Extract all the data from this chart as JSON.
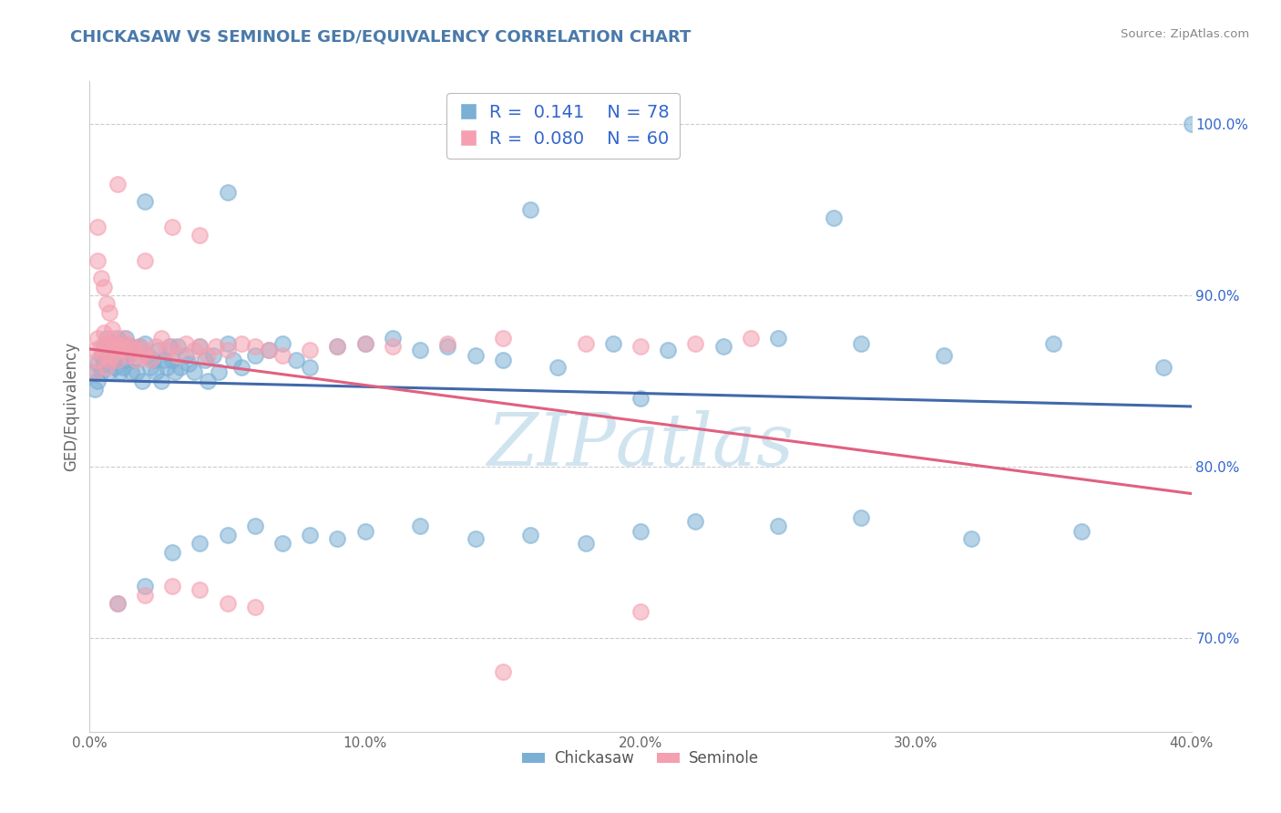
{
  "title": "CHICKASAW VS SEMINOLE GED/EQUIVALENCY CORRELATION CHART",
  "source_text": "Source: ZipAtlas.com",
  "ylabel": "GED/Equivalency",
  "xlim": [
    0.0,
    0.4
  ],
  "ylim": [
    0.645,
    1.025
  ],
  "xtick_labels": [
    "0.0%",
    "10.0%",
    "20.0%",
    "30.0%",
    "40.0%"
  ],
  "xtick_values": [
    0.0,
    0.1,
    0.2,
    0.3,
    0.4
  ],
  "ytick_labels_right": [
    "70.0%",
    "80.0%",
    "90.0%",
    "100.0%"
  ],
  "ytick_values_right": [
    0.7,
    0.8,
    0.9,
    1.0
  ],
  "chickasaw_R": 0.141,
  "chickasaw_N": 78,
  "seminole_R": 0.08,
  "seminole_N": 60,
  "blue_color": "#7BAFD4",
  "pink_color": "#F4A0B0",
  "blue_line_color": "#4169AA",
  "pink_line_color": "#E06080",
  "title_color": "#4A7AAA",
  "legend_N_color": "#3366CC",
  "watermark_color": "#D0E4F0",
  "background_color": "#FFFFFF",
  "grid_color": "#CCCCCC",
  "chickasaw_x": [
    0.002,
    0.002,
    0.003,
    0.003,
    0.004,
    0.004,
    0.005,
    0.005,
    0.006,
    0.006,
    0.007,
    0.007,
    0.008,
    0.009,
    0.009,
    0.01,
    0.01,
    0.011,
    0.011,
    0.012,
    0.012,
    0.013,
    0.013,
    0.014,
    0.015,
    0.015,
    0.016,
    0.017,
    0.018,
    0.019,
    0.02,
    0.021,
    0.022,
    0.023,
    0.024,
    0.025,
    0.026,
    0.027,
    0.028,
    0.029,
    0.03,
    0.031,
    0.032,
    0.033,
    0.035,
    0.036,
    0.038,
    0.04,
    0.042,
    0.043,
    0.045,
    0.047,
    0.05,
    0.052,
    0.055,
    0.06,
    0.065,
    0.07,
    0.075,
    0.08,
    0.09,
    0.1,
    0.11,
    0.12,
    0.13,
    0.14,
    0.15,
    0.17,
    0.19,
    0.21,
    0.23,
    0.25,
    0.28,
    0.31,
    0.35,
    0.39,
    0.2,
    0.4
  ],
  "chickasaw_y": [
    0.855,
    0.845,
    0.86,
    0.85,
    0.865,
    0.855,
    0.87,
    0.86,
    0.875,
    0.865,
    0.868,
    0.855,
    0.862,
    0.872,
    0.858,
    0.875,
    0.862,
    0.868,
    0.855,
    0.872,
    0.858,
    0.875,
    0.862,
    0.865,
    0.87,
    0.855,
    0.862,
    0.855,
    0.87,
    0.85,
    0.872,
    0.865,
    0.858,
    0.862,
    0.855,
    0.868,
    0.85,
    0.862,
    0.858,
    0.87,
    0.862,
    0.855,
    0.87,
    0.858,
    0.865,
    0.86,
    0.855,
    0.87,
    0.862,
    0.85,
    0.865,
    0.855,
    0.872,
    0.862,
    0.858,
    0.865,
    0.868,
    0.872,
    0.862,
    0.858,
    0.87,
    0.872,
    0.875,
    0.868,
    0.87,
    0.865,
    0.862,
    0.858,
    0.872,
    0.868,
    0.87,
    0.875,
    0.872,
    0.865,
    0.872,
    0.858,
    0.84,
    1.0
  ],
  "seminole_x": [
    0.002,
    0.002,
    0.003,
    0.003,
    0.004,
    0.005,
    0.005,
    0.006,
    0.006,
    0.007,
    0.007,
    0.008,
    0.008,
    0.009,
    0.01,
    0.01,
    0.011,
    0.012,
    0.012,
    0.013,
    0.014,
    0.015,
    0.016,
    0.017,
    0.018,
    0.019,
    0.02,
    0.022,
    0.024,
    0.026,
    0.028,
    0.03,
    0.032,
    0.035,
    0.038,
    0.04,
    0.043,
    0.046,
    0.05,
    0.055,
    0.06,
    0.065,
    0.07,
    0.08,
    0.09,
    0.1,
    0.11,
    0.13,
    0.15,
    0.18,
    0.2,
    0.22,
    0.24,
    0.003,
    0.003,
    0.004,
    0.005,
    0.006,
    0.007,
    0.008
  ],
  "seminole_y": [
    0.868,
    0.855,
    0.875,
    0.862,
    0.87,
    0.878,
    0.865,
    0.872,
    0.858,
    0.87,
    0.862,
    0.875,
    0.865,
    0.872,
    0.868,
    0.862,
    0.87,
    0.868,
    0.875,
    0.872,
    0.865,
    0.87,
    0.868,
    0.862,
    0.87,
    0.865,
    0.868,
    0.862,
    0.87,
    0.875,
    0.868,
    0.87,
    0.865,
    0.872,
    0.868,
    0.87,
    0.865,
    0.87,
    0.868,
    0.872,
    0.87,
    0.868,
    0.865,
    0.868,
    0.87,
    0.872,
    0.87,
    0.872,
    0.875,
    0.872,
    0.87,
    0.872,
    0.875,
    0.92,
    0.94,
    0.91,
    0.905,
    0.895,
    0.89,
    0.88
  ],
  "extra_blue_high": [
    [
      0.02,
      0.955
    ],
    [
      0.05,
      0.96
    ],
    [
      0.16,
      0.95
    ],
    [
      0.27,
      0.945
    ]
  ],
  "extra_blue_low": [
    [
      0.01,
      0.72
    ],
    [
      0.02,
      0.73
    ],
    [
      0.03,
      0.75
    ],
    [
      0.04,
      0.755
    ],
    [
      0.05,
      0.76
    ],
    [
      0.06,
      0.765
    ],
    [
      0.07,
      0.755
    ],
    [
      0.08,
      0.76
    ],
    [
      0.09,
      0.758
    ],
    [
      0.1,
      0.762
    ],
    [
      0.12,
      0.765
    ],
    [
      0.14,
      0.758
    ],
    [
      0.16,
      0.76
    ],
    [
      0.18,
      0.755
    ],
    [
      0.2,
      0.762
    ],
    [
      0.22,
      0.768
    ],
    [
      0.25,
      0.765
    ],
    [
      0.28,
      0.77
    ],
    [
      0.32,
      0.758
    ],
    [
      0.36,
      0.762
    ]
  ],
  "extra_pink_high": [
    [
      0.01,
      0.965
    ],
    [
      0.02,
      0.92
    ],
    [
      0.03,
      0.94
    ],
    [
      0.04,
      0.935
    ]
  ],
  "extra_pink_low": [
    [
      0.01,
      0.72
    ],
    [
      0.02,
      0.725
    ],
    [
      0.03,
      0.73
    ],
    [
      0.04,
      0.728
    ],
    [
      0.05,
      0.72
    ],
    [
      0.06,
      0.718
    ],
    [
      0.15,
      0.68
    ],
    [
      0.2,
      0.715
    ]
  ]
}
